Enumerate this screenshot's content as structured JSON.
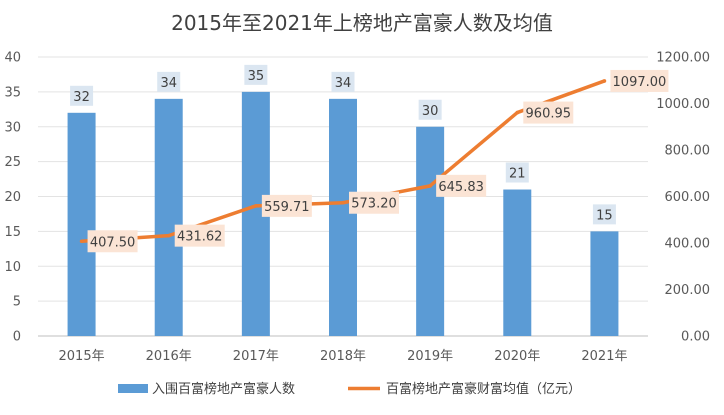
{
  "chart_data": {
    "type": "bar+line",
    "title": "2015年至2021年上榜地产富豪人数及均值",
    "categories": [
      "2015年",
      "2016年",
      "2017年",
      "2018年",
      "2019年",
      "2020年",
      "2021年"
    ],
    "series": [
      {
        "name": "入围百富榜地产富豪人数",
        "type": "bar",
        "axis": "left",
        "color": "#5B9BD5",
        "values": [
          32,
          34,
          35,
          34,
          30,
          21,
          15
        ],
        "labels": [
          "32",
          "34",
          "35",
          "34",
          "30",
          "21",
          "15"
        ]
      },
      {
        "name": "百富榜地产富豪财富均值（亿元）",
        "type": "line",
        "axis": "right",
        "color": "#ED7D31",
        "values": [
          407.5,
          431.62,
          559.71,
          573.2,
          645.83,
          960.95,
          1097.0
        ],
        "labels": [
          "407.50",
          "431.62",
          "559.71",
          "573.20",
          "645.83",
          "960.95",
          "1097.00"
        ]
      }
    ],
    "y_left": {
      "min": 0,
      "max": 40,
      "ticks": [
        "0",
        "5",
        "10",
        "15",
        "20",
        "25",
        "30",
        "35",
        "40"
      ]
    },
    "y_right": {
      "min": 0,
      "max": 1200,
      "ticks": [
        "0.00",
        "200.00",
        "400.00",
        "600.00",
        "800.00",
        "1000.00",
        "1200.00"
      ]
    },
    "grid": true,
    "legend_position": "bottom"
  }
}
